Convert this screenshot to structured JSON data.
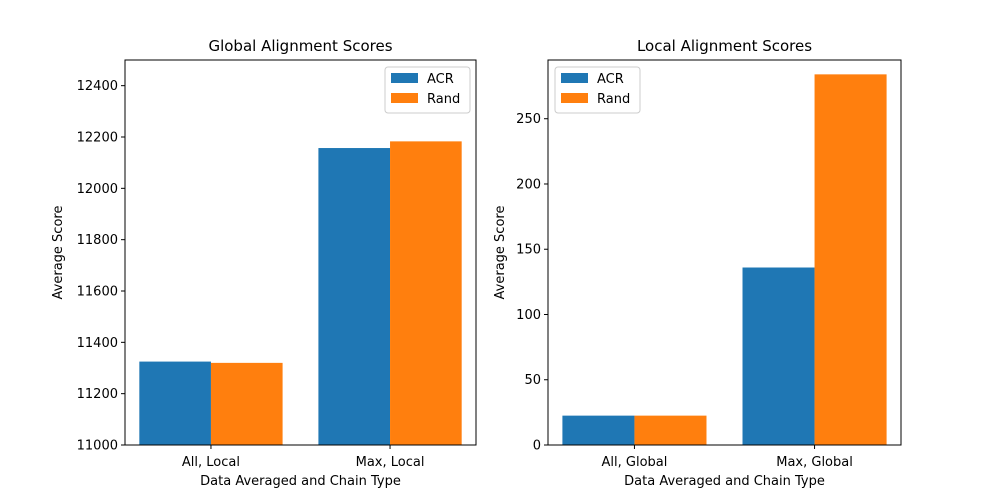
{
  "chart_data": [
    {
      "type": "bar",
      "title": "Global Alignment Scores",
      "xlabel": "Data Averaged and Chain Type",
      "ylabel": "Average Score",
      "categories": [
        "All, Local",
        "Max, Local"
      ],
      "series": [
        {
          "name": "ACR",
          "color": "#1f77b4",
          "values": [
            11325,
            12157
          ]
        },
        {
          "name": "Rand",
          "color": "#ff7f0e",
          "values": [
            11320,
            12183
          ]
        }
      ],
      "ylim": [
        11000,
        12500
      ],
      "yticks": [
        11000,
        11200,
        11400,
        11600,
        11800,
        12000,
        12200,
        12400
      ],
      "grid": false,
      "legend": "top-right"
    },
    {
      "type": "bar",
      "title": "Local Alignment Scores",
      "xlabel": "Data Averaged and Chain Type",
      "ylabel": "Average Score",
      "categories": [
        "All, Global",
        "Max, Global"
      ],
      "series": [
        {
          "name": "ACR",
          "color": "#1f77b4",
          "values": [
            22.5,
            136
          ]
        },
        {
          "name": "Rand",
          "color": "#ff7f0e",
          "values": [
            22.5,
            284
          ]
        }
      ],
      "ylim": [
        0,
        295
      ],
      "yticks": [
        0,
        50,
        100,
        150,
        200,
        250
      ],
      "grid": false,
      "legend": "top-left"
    }
  ]
}
